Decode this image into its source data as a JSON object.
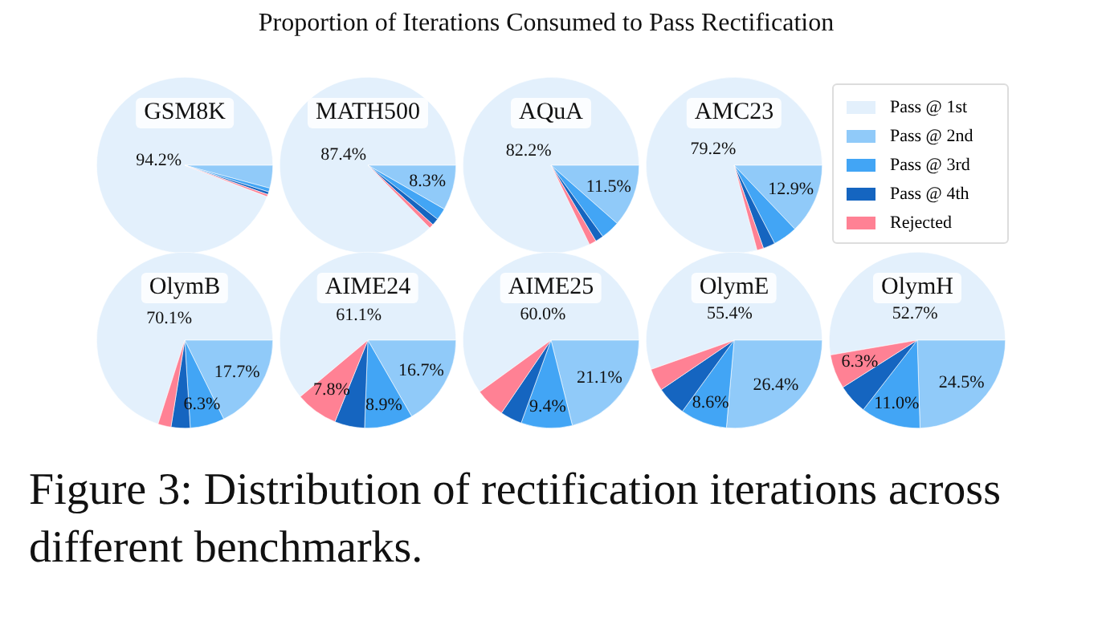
{
  "chart_data": [
    {
      "type": "other",
      "title": "Proportion of Iterations Consumed to Pass Rectification"
    },
    {
      "type": "pie",
      "title": "GSM8K",
      "categories": [
        "Pass @ 1st",
        "Pass @ 2nd",
        "Pass @ 3rd",
        "Pass @ 4th",
        "Rejected"
      ],
      "values": [
        94.2,
        4.2,
        0.7,
        0.5,
        0.4
      ],
      "colors": [
        "#e3f0fc",
        "#90caf9",
        "#42a5f5",
        "#1565c0",
        "#ff8194"
      ],
      "value_labels": [
        "94.2%",
        null,
        null,
        null,
        null
      ],
      "legend": "right"
    },
    {
      "type": "pie",
      "title": "MATH500",
      "categories": [
        null,
        null,
        null,
        null,
        null
      ],
      "values": [
        87.4,
        8.3,
        2.2,
        1.3,
        0.8
      ],
      "colors": [
        "#e3f0fc",
        "#90caf9",
        "#42a5f5",
        "#1565c0",
        "#ff8194"
      ],
      "value_labels": [
        "87.4%",
        "8.3%",
        null,
        null,
        null
      ]
    },
    {
      "type": "pie",
      "title": "AQuA",
      "categories": [
        null,
        null,
        null,
        null,
        null
      ],
      "values": [
        82.2,
        11.5,
        3.5,
        1.5,
        1.3
      ],
      "colors": [
        "#e3f0fc",
        "#90caf9",
        "#42a5f5",
        "#1565c0",
        "#ff8194"
      ],
      "value_labels": [
        "82.2%",
        "11.5%",
        null,
        null,
        null
      ]
    },
    {
      "type": "pie",
      "title": "AMC23",
      "categories": [
        null,
        null,
        null,
        null,
        null
      ],
      "values": [
        79.2,
        12.9,
        4.5,
        2.2,
        1.2
      ],
      "colors": [
        "#e3f0fc",
        "#90caf9",
        "#42a5f5",
        "#1565c0",
        "#ff8194"
      ],
      "value_labels": [
        "79.2%",
        "12.9%",
        null,
        null,
        null
      ]
    },
    {
      "type": "pie",
      "title": "OlymB",
      "categories": [
        null,
        null,
        null,
        null,
        null
      ],
      "values": [
        70.1,
        17.7,
        6.3,
        3.5,
        2.4
      ],
      "colors": [
        "#e3f0fc",
        "#90caf9",
        "#42a5f5",
        "#1565c0",
        "#ff8194"
      ],
      "value_labels": [
        "70.1%",
        "17.7%",
        "6.3%",
        null,
        null
      ]
    },
    {
      "type": "pie",
      "title": "AIME24",
      "categories": [
        null,
        null,
        null,
        null,
        null
      ],
      "values": [
        61.1,
        16.7,
        8.9,
        5.5,
        7.8
      ],
      "colors": [
        "#e3f0fc",
        "#90caf9",
        "#42a5f5",
        "#1565c0",
        "#ff8194"
      ],
      "value_labels": [
        "61.1%",
        "16.7%",
        "8.9%",
        null,
        "7.8%"
      ]
    },
    {
      "type": "pie",
      "title": "AIME25",
      "categories": [
        null,
        null,
        null,
        null,
        null
      ],
      "values": [
        60.0,
        21.1,
        9.4,
        4.0,
        5.5
      ],
      "colors": [
        "#e3f0fc",
        "#90caf9",
        "#42a5f5",
        "#1565c0",
        "#ff8194"
      ],
      "value_labels": [
        "60.0%",
        "21.1%",
        "9.4%",
        null,
        null
      ]
    },
    {
      "type": "pie",
      "title": "OlymE",
      "categories": [
        null,
        null,
        null,
        null,
        null
      ],
      "values": [
        55.4,
        26.4,
        8.6,
        5.5,
        4.1
      ],
      "colors": [
        "#e3f0fc",
        "#90caf9",
        "#42a5f5",
        "#1565c0",
        "#ff8194"
      ],
      "value_labels": [
        "55.4%",
        "26.4%",
        "8.6%",
        null,
        null
      ]
    },
    {
      "type": "pie",
      "title": "OlymH",
      "categories": [
        null,
        null,
        null,
        null,
        null
      ],
      "values": [
        52.7,
        24.5,
        11.0,
        5.5,
        6.3
      ],
      "colors": [
        "#e3f0fc",
        "#90caf9",
        "#42a5f5",
        "#1565c0",
        "#ff8194"
      ],
      "value_labels": [
        "52.7%",
        "24.5%",
        "11.0%",
        null,
        "6.3%"
      ]
    },
    {
      "type": "other",
      "annotations": [
        "Figure 3: Distribution of rectification iterations across different benchmarks."
      ]
    }
  ]
}
